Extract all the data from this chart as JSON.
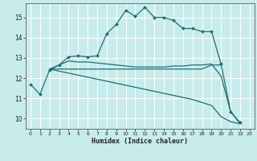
{
  "xlabel": "Humidex (Indice chaleur)",
  "bg_color": "#c8ecec",
  "grid_color": "#ffffff",
  "line_color": "#1a7070",
  "xlim": [
    -0.5,
    23.5
  ],
  "ylim": [
    9.5,
    15.7
  ],
  "xticks": [
    0,
    1,
    2,
    3,
    4,
    5,
    6,
    7,
    8,
    9,
    10,
    11,
    12,
    13,
    14,
    15,
    16,
    17,
    18,
    19,
    20,
    21,
    22,
    23
  ],
  "yticks": [
    10,
    11,
    12,
    13,
    14,
    15
  ],
  "series": [
    {
      "x": [
        0,
        1,
        2,
        3,
        4,
        5,
        6,
        7,
        8,
        9,
        10,
        11,
        12,
        13,
        14,
        15,
        16,
        17,
        18,
        19,
        20,
        21,
        22
      ],
      "y": [
        11.7,
        11.2,
        12.4,
        12.65,
        13.05,
        13.1,
        13.05,
        13.1,
        14.2,
        14.65,
        15.35,
        15.05,
        15.5,
        15.0,
        15.0,
        14.85,
        14.45,
        14.45,
        14.3,
        14.3,
        12.7,
        10.35,
        9.8
      ],
      "marker": "D",
      "markersize": 2.0,
      "linewidth": 0.9
    },
    {
      "x": [
        2,
        3,
        4,
        5,
        6,
        7,
        8,
        9,
        10,
        11,
        12,
        13,
        14,
        15,
        16,
        17,
        18,
        19,
        20
      ],
      "y": [
        12.45,
        12.45,
        12.45,
        12.45,
        12.45,
        12.45,
        12.45,
        12.45,
        12.45,
        12.45,
        12.45,
        12.45,
        12.45,
        12.45,
        12.45,
        12.45,
        12.45,
        12.65,
        12.65
      ],
      "marker": null,
      "linewidth": 0.9
    },
    {
      "x": [
        2,
        3,
        4,
        5,
        6,
        7,
        8,
        9,
        10,
        11,
        12,
        13,
        14,
        15,
        16,
        17,
        18,
        19,
        20,
        21,
        22
      ],
      "y": [
        12.45,
        12.35,
        12.25,
        12.15,
        12.05,
        11.95,
        11.85,
        11.75,
        11.65,
        11.55,
        11.45,
        11.35,
        11.25,
        11.15,
        11.05,
        10.95,
        10.8,
        10.65,
        10.1,
        9.85,
        9.75
      ],
      "marker": null,
      "linewidth": 0.9
    },
    {
      "x": [
        2,
        3,
        4,
        5,
        6,
        7,
        8,
        9,
        10,
        11,
        12,
        13,
        14,
        15,
        16,
        17,
        18,
        19,
        20,
        21,
        22
      ],
      "y": [
        12.45,
        12.65,
        12.85,
        12.8,
        12.8,
        12.75,
        12.7,
        12.65,
        12.6,
        12.55,
        12.55,
        12.55,
        12.55,
        12.6,
        12.6,
        12.65,
        12.65,
        12.7,
        12.1,
        10.35,
        9.75
      ],
      "marker": null,
      "linewidth": 0.9
    }
  ]
}
